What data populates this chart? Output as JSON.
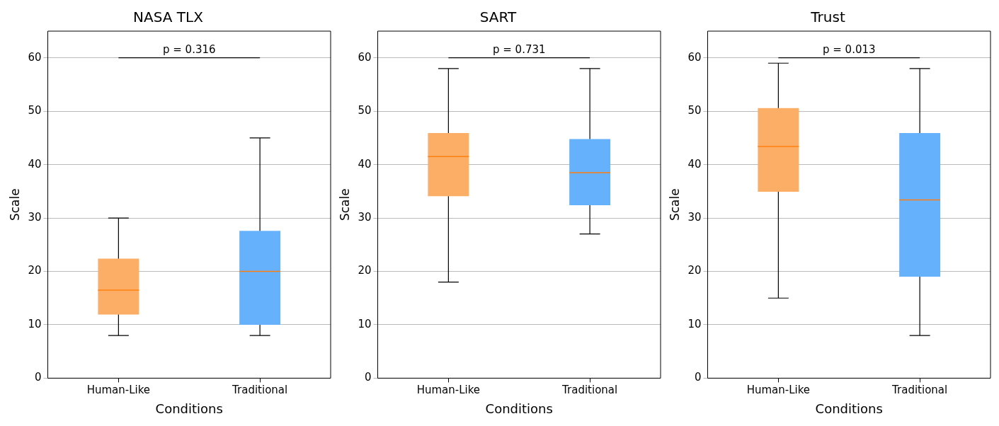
{
  "chart_data": [
    {
      "type": "box",
      "title": "NASA TLX",
      "xlabel": "Conditions",
      "ylabel": "Scale",
      "categories": [
        "Human-Like",
        "Traditional"
      ],
      "colors": [
        "#fcae66",
        "#66b1fc"
      ],
      "boxes": [
        {
          "low": 8,
          "q1": 11.9,
          "median": 16.5,
          "q3": 22.4,
          "high": 30
        },
        {
          "low": 8,
          "q1": 10,
          "median": 20,
          "q3": 27.6,
          "high": 45
        }
      ],
      "ylim": [
        0,
        65
      ],
      "yticks": [
        0,
        10,
        20,
        30,
        40,
        50,
        60
      ],
      "grid": "y",
      "annotations": [
        "p = 0.316"
      ]
    },
    {
      "type": "box",
      "title": "SART",
      "xlabel": "Conditions",
      "ylabel": "Scale",
      "categories": [
        "Human-Like",
        "Traditional"
      ],
      "colors": [
        "#fcae66",
        "#66b1fc"
      ],
      "boxes": [
        {
          "low": 18,
          "q1": 34.1,
          "median": 41.5,
          "q3": 45.9,
          "high": 58
        },
        {
          "low": 27,
          "q1": 32.4,
          "median": 38.5,
          "q3": 44.8,
          "high": 58
        }
      ],
      "ylim": [
        0,
        65
      ],
      "yticks": [
        0,
        10,
        20,
        30,
        40,
        50,
        60
      ],
      "grid": "y",
      "annotations": [
        "p = 0.731"
      ]
    },
    {
      "type": "box",
      "title": "Trust",
      "xlabel": "Conditions",
      "ylabel": "Scale",
      "categories": [
        "Human-Like",
        "Traditional"
      ],
      "colors": [
        "#fcae66",
        "#66b1fc"
      ],
      "boxes": [
        {
          "low": 15,
          "q1": 34.9,
          "median": 43.4,
          "q3": 50.6,
          "high": 59
        },
        {
          "low": 8,
          "q1": 19,
          "median": 33.4,
          "q3": 45.9,
          "high": 58
        }
      ],
      "ylim": [
        0,
        65
      ],
      "yticks": [
        0,
        10,
        20,
        30,
        40,
        50,
        60
      ],
      "grid": "y",
      "annotations": [
        "p = 0.013"
      ]
    }
  ]
}
